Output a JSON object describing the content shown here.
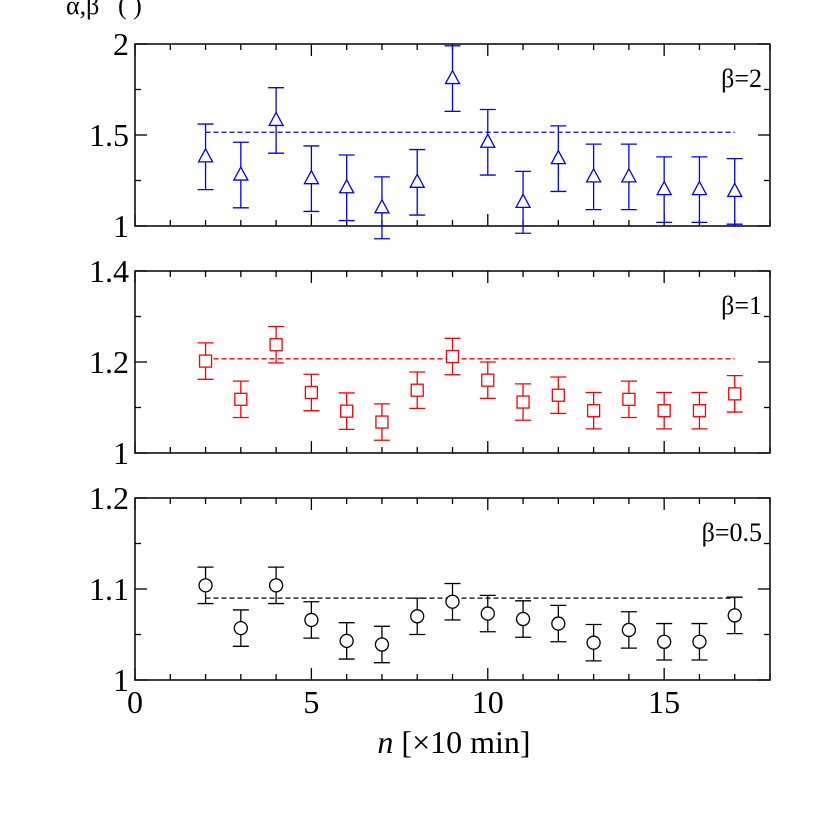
{
  "chart_data": {
    "type": "scatter",
    "ylabel_clipped": "α,β",
    "xlabel_italic": "n",
    "xlabel_rest": " [×10 min]",
    "xlim": [
      0,
      18
    ],
    "x_ticks": [
      0,
      5,
      10,
      15
    ],
    "x_tick_labels": [
      "0",
      "5",
      "10",
      "15"
    ],
    "panels": [
      {
        "name": "beta-2",
        "label": "β=2",
        "color": "#0000ff",
        "marker": "triangle",
        "ylim": [
          1,
          2
        ],
        "y_ticks": [
          1,
          1.5,
          2
        ],
        "y_tick_labels": [
          "1",
          "1.5",
          "2"
        ],
        "y_minor_step": 0.25,
        "reference": {
          "value": 1.515,
          "x_from": 2,
          "x_to": 17
        },
        "x": [
          2,
          3,
          4,
          5,
          6,
          7,
          8,
          9,
          10,
          11,
          12,
          13,
          14,
          15,
          16,
          17
        ],
        "y": [
          1.38,
          1.28,
          1.58,
          1.26,
          1.21,
          1.1,
          1.24,
          1.81,
          1.46,
          1.13,
          1.37,
          1.27,
          1.27,
          1.2,
          1.2,
          1.19
        ],
        "err": [
          0.18,
          0.18,
          0.18,
          0.18,
          0.18,
          0.17,
          0.18,
          0.18,
          0.18,
          0.17,
          0.18,
          0.18,
          0.18,
          0.18,
          0.18,
          0.18
        ]
      },
      {
        "name": "beta-1",
        "label": "β=1",
        "color": "#ff0000",
        "marker": "square",
        "ylim": [
          1,
          1.4
        ],
        "y_ticks": [
          1,
          1.2,
          1.4
        ],
        "y_tick_labels": [
          "1",
          "1.2",
          "1.4"
        ],
        "y_minor_step": 0.1,
        "reference": {
          "value": 1.207,
          "x_from": 2,
          "x_to": 17
        },
        "x": [
          2,
          3,
          4,
          5,
          6,
          7,
          8,
          9,
          10,
          11,
          12,
          13,
          14,
          15,
          16,
          17
        ],
        "y": [
          1.202,
          1.118,
          1.238,
          1.133,
          1.092,
          1.068,
          1.138,
          1.212,
          1.16,
          1.112,
          1.127,
          1.093,
          1.118,
          1.093,
          1.093,
          1.13
        ],
        "err": [
          0.04,
          0.04,
          0.04,
          0.04,
          0.04,
          0.04,
          0.04,
          0.04,
          0.04,
          0.04,
          0.04,
          0.04,
          0.04,
          0.04,
          0.04,
          0.04
        ]
      },
      {
        "name": "beta-0-5",
        "label": "β=0.5",
        "color": "#000000",
        "marker": "circle",
        "ylim": [
          1,
          1.2
        ],
        "y_ticks": [
          1,
          1.1,
          1.2
        ],
        "y_tick_labels": [
          "1",
          "1.1",
          "1.2"
        ],
        "y_minor_step": 0.05,
        "reference": {
          "value": 1.09,
          "x_from": 2,
          "x_to": 17
        },
        "x": [
          2,
          3,
          4,
          5,
          6,
          7,
          8,
          9,
          10,
          11,
          12,
          13,
          14,
          15,
          16,
          17
        ],
        "y": [
          1.104,
          1.057,
          1.104,
          1.066,
          1.043,
          1.039,
          1.07,
          1.086,
          1.073,
          1.067,
          1.062,
          1.041,
          1.055,
          1.042,
          1.042,
          1.071
        ],
        "err": [
          0.02,
          0.02,
          0.02,
          0.02,
          0.02,
          0.02,
          0.02,
          0.02,
          0.02,
          0.02,
          0.02,
          0.02,
          0.02,
          0.02,
          0.02,
          0.02
        ]
      }
    ]
  }
}
